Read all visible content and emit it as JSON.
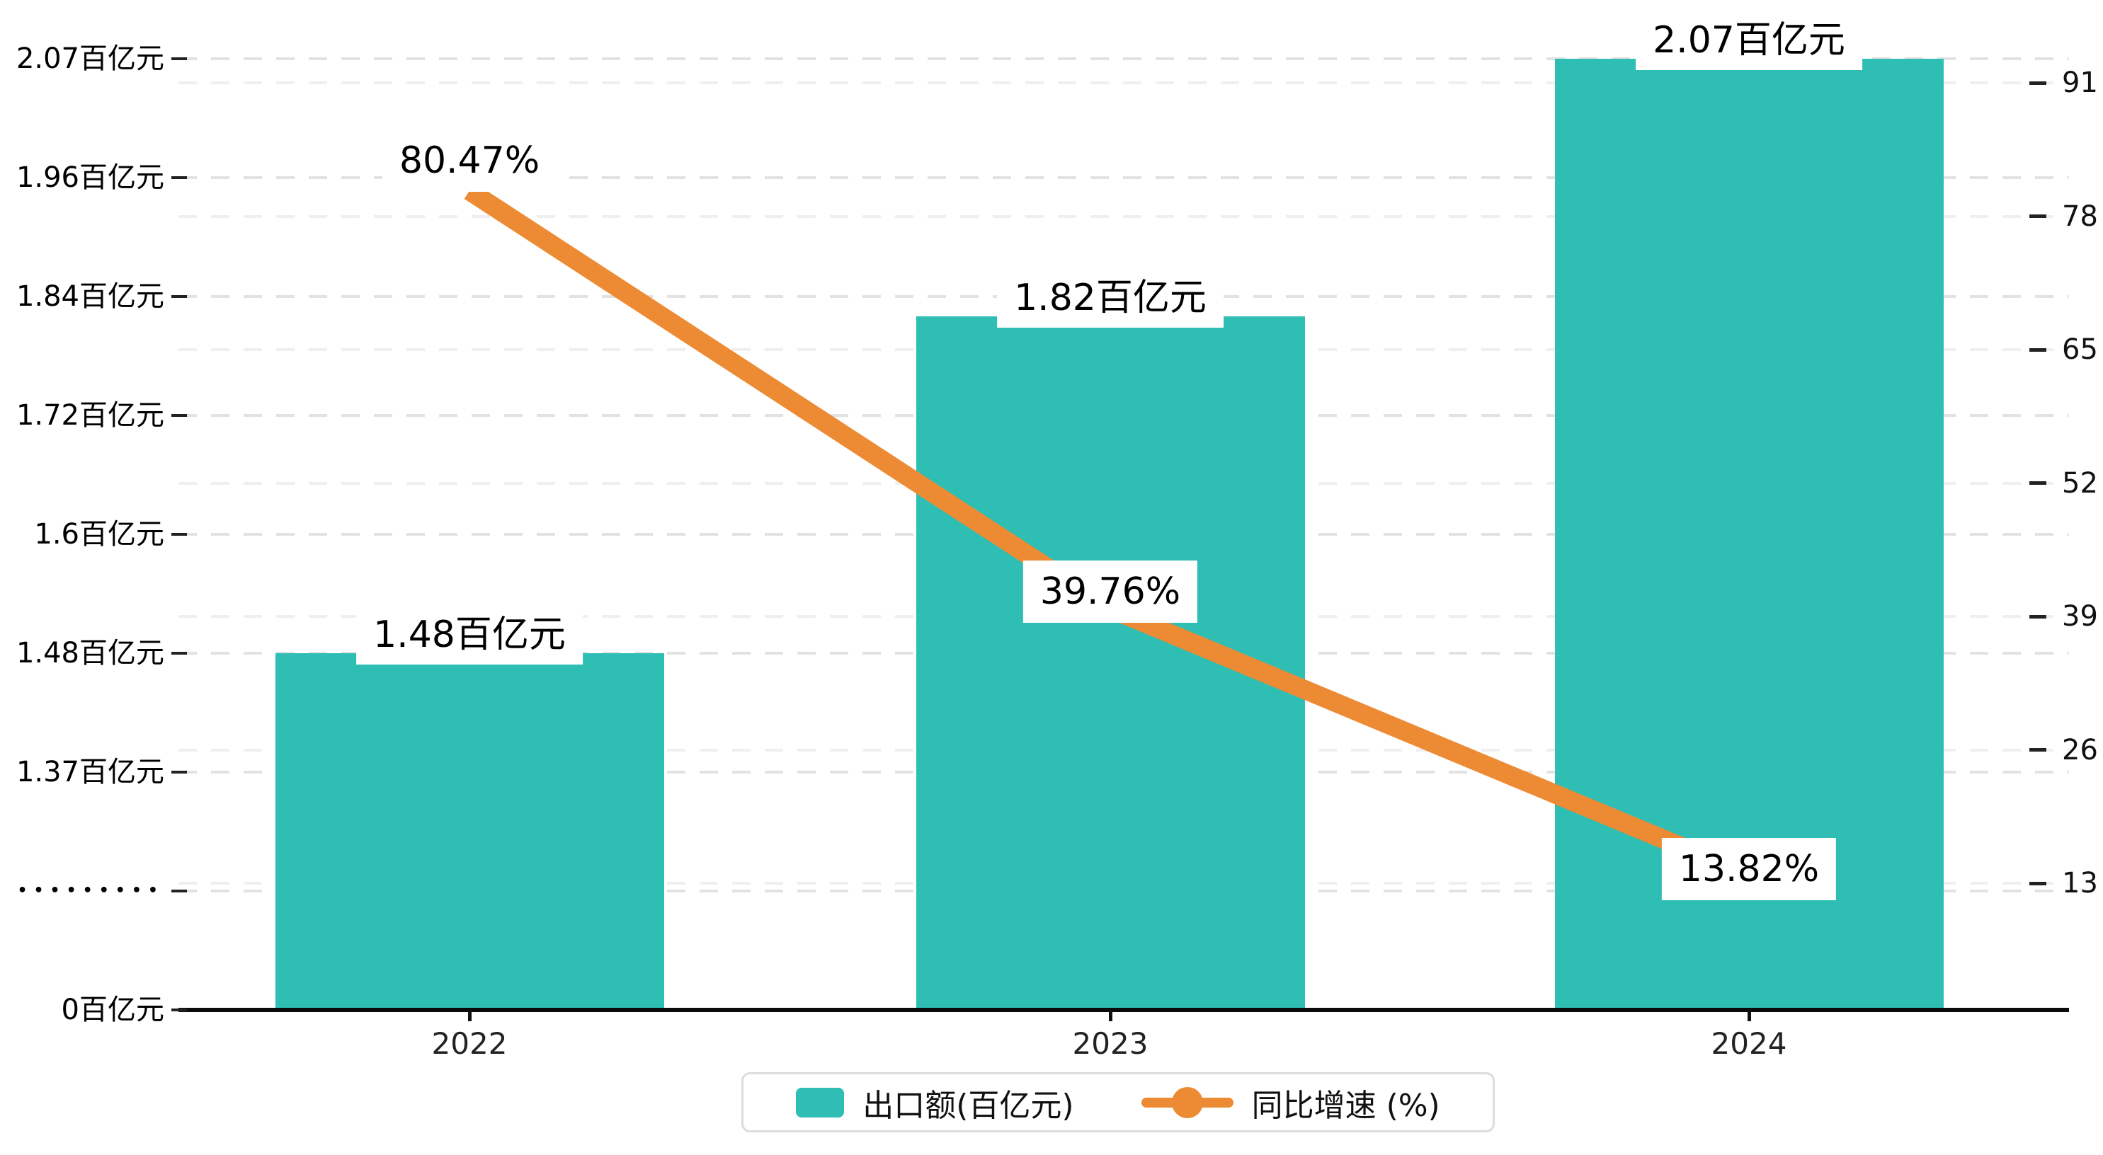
{
  "chart_data": {
    "type": "combo",
    "categories": [
      "2022",
      "2023",
      "2024"
    ],
    "series": [
      {
        "name": "出口额(百亿元)",
        "type": "bar",
        "axis": "left",
        "values": [
          1.48,
          1.82,
          2.07
        ],
        "labels": [
          "1.48百亿元",
          "1.82百亿元",
          "2.07百亿元"
        ],
        "color": "#2FBEB3"
      },
      {
        "name": "同比增速 (%)",
        "type": "line",
        "axis": "right",
        "values": [
          80.47,
          39.76,
          13.82
        ],
        "labels": [
          "80.47%",
          "39.76%",
          "13.82%"
        ],
        "color": "#ED8A34"
      }
    ],
    "left_axis": {
      "unit": "百亿元",
      "axis_break": true,
      "ticks": [
        {
          "label": "0百亿元",
          "value": 0
        },
        {
          "label": "•••••••••",
          "value": null
        },
        {
          "label": "1.37百亿元",
          "value": 1.37
        },
        {
          "label": "1.48百亿元",
          "value": 1.48
        },
        {
          "label": "1.6百亿元",
          "value": 1.6
        },
        {
          "label": "1.72百亿元",
          "value": 1.72
        },
        {
          "label": "1.84百亿元",
          "value": 1.84
        },
        {
          "label": "1.96百亿元",
          "value": 1.96
        },
        {
          "label": "2.07百亿元",
          "value": 2.07
        }
      ]
    },
    "right_axis": {
      "ticks": [
        13,
        26,
        39,
        52,
        65,
        78,
        91
      ]
    },
    "legend": [
      {
        "label": "出口额(百亿元)",
        "marker": "bar-swatch",
        "color": "#2FBEB3"
      },
      {
        "label": "同比增速 (%)",
        "marker": "line-dot",
        "color": "#ED8A34"
      }
    ],
    "grid": {
      "dashed": true,
      "legend_position": "bottom"
    }
  }
}
